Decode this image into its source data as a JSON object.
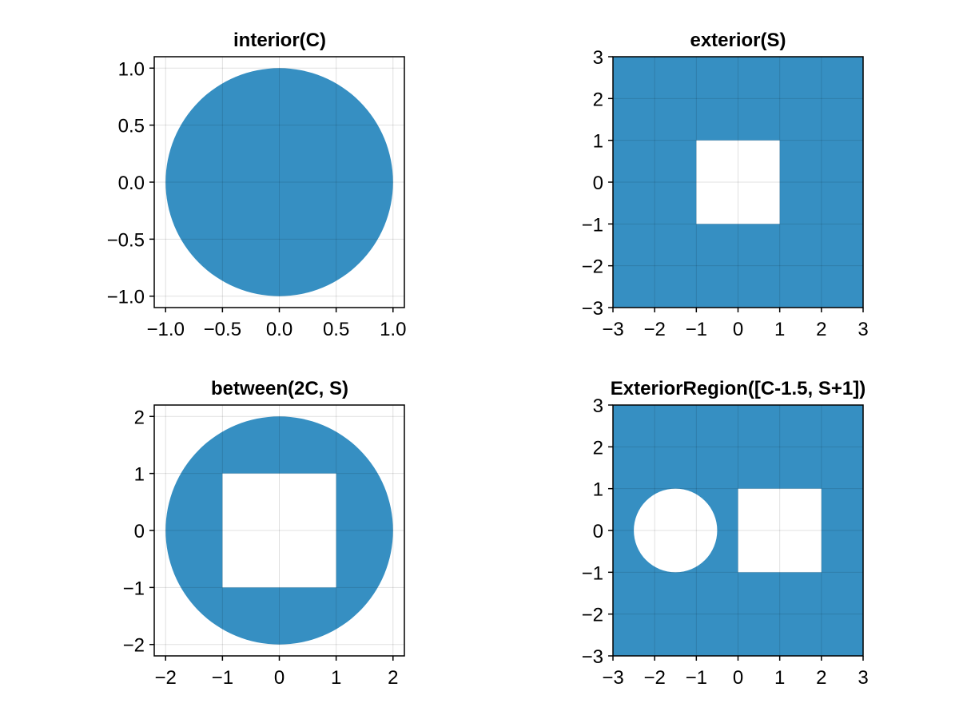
{
  "figure": {
    "fill_color": "#368fc2",
    "hole_color": "#ffffff"
  },
  "chart_data": [
    {
      "type": "region",
      "title": "interior(C)",
      "xlabel": "",
      "ylabel": "",
      "xlim": [
        -1.1,
        1.1
      ],
      "ylim": [
        -1.1,
        1.1
      ],
      "xticks": [
        -1.0,
        -0.5,
        0.0,
        0.5,
        1.0
      ],
      "xtick_labels": [
        "−1.0",
        "−0.5",
        "0.0",
        "0.5",
        "1.0"
      ],
      "yticks": [
        -1.0,
        -0.5,
        0.0,
        0.5,
        1.0
      ],
      "ytick_labels": [
        "−1.0",
        "−0.5",
        "0.0",
        "0.5",
        "1.0"
      ],
      "grid": true,
      "fill": [
        {
          "shape": "circle",
          "center": [
            0,
            0
          ],
          "radius": 1
        }
      ],
      "holes": []
    },
    {
      "type": "region",
      "title": "exterior(S)",
      "xlabel": "",
      "ylabel": "",
      "xlim": [
        -3,
        3
      ],
      "ylim": [
        -3,
        3
      ],
      "xticks": [
        -3,
        -2,
        -1,
        0,
        1,
        2,
        3
      ],
      "xtick_labels": [
        "−3",
        "−2",
        "−1",
        "0",
        "1",
        "2",
        "3"
      ],
      "yticks": [
        -3,
        -2,
        -1,
        0,
        1,
        2,
        3
      ],
      "ytick_labels": [
        "−3",
        "−2",
        "−1",
        "0",
        "1",
        "2",
        "3"
      ],
      "grid": true,
      "fill": [
        {
          "shape": "rect",
          "x": [
            -3,
            3
          ],
          "y": [
            -3,
            3
          ]
        }
      ],
      "holes": [
        {
          "shape": "rect",
          "x": [
            -1,
            1
          ],
          "y": [
            -1,
            1
          ]
        }
      ]
    },
    {
      "type": "region",
      "title": "between(2C, S)",
      "xlabel": "",
      "ylabel": "",
      "xlim": [
        -2.2,
        2.2
      ],
      "ylim": [
        -2.2,
        2.2
      ],
      "xticks": [
        -2,
        -1,
        0,
        1,
        2
      ],
      "xtick_labels": [
        "−2",
        "−1",
        "0",
        "1",
        "2"
      ],
      "yticks": [
        -2,
        -1,
        0,
        1,
        2
      ],
      "ytick_labels": [
        "−2",
        "−1",
        "0",
        "1",
        "2"
      ],
      "grid": true,
      "fill": [
        {
          "shape": "circle",
          "center": [
            0,
            0
          ],
          "radius": 2
        }
      ],
      "holes": [
        {
          "shape": "rect",
          "x": [
            -1,
            1
          ],
          "y": [
            -1,
            1
          ]
        }
      ]
    },
    {
      "type": "region",
      "title": "ExteriorRegion([C-1.5, S+1])",
      "xlabel": "",
      "ylabel": "",
      "xlim": [
        -3,
        3
      ],
      "ylim": [
        -3,
        3
      ],
      "xticks": [
        -3,
        -2,
        -1,
        0,
        1,
        2,
        3
      ],
      "xtick_labels": [
        "−3",
        "−2",
        "−1",
        "0",
        "1",
        "2",
        "3"
      ],
      "yticks": [
        -3,
        -2,
        -1,
        0,
        1,
        2,
        3
      ],
      "ytick_labels": [
        "−3",
        "−2",
        "−1",
        "0",
        "1",
        "2",
        "3"
      ],
      "grid": true,
      "fill": [
        {
          "shape": "rect",
          "x": [
            -3,
            3
          ],
          "y": [
            -3,
            3
          ]
        }
      ],
      "holes": [
        {
          "shape": "circle",
          "center": [
            -1.5,
            0
          ],
          "radius": 1
        },
        {
          "shape": "rect",
          "x": [
            0,
            2
          ],
          "y": [
            -1,
            1
          ]
        }
      ]
    }
  ]
}
